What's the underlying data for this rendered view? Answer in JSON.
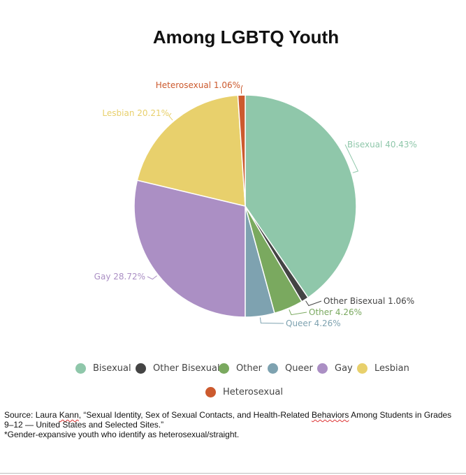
{
  "chart_data": {
    "type": "pie",
    "title": "Among LGBTQ Youth",
    "slices": [
      {
        "name": "Bisexual",
        "value": 40.43,
        "label": "Bisexual 40.43%",
        "color": "#8fc7aa"
      },
      {
        "name": "Other Bisexual",
        "value": 1.06,
        "label": "Other Bisexual 1.06%",
        "color": "#444444"
      },
      {
        "name": "Other",
        "value": 4.26,
        "label": "Other 4.26%",
        "color": "#7aa95f"
      },
      {
        "name": "Queer",
        "value": 4.26,
        "label": "Queer 4.26%",
        "color": "#7ea2b0"
      },
      {
        "name": "Gay",
        "value": 28.72,
        "label": "Gay 28.72%",
        "color": "#ab8fc4"
      },
      {
        "name": "Lesbian",
        "value": 20.21,
        "label": "Lesbian 20.21%",
        "color": "#e8d06c"
      },
      {
        "name": "Heterosexual",
        "value": 1.06,
        "label": "Heterosexual 1.06%",
        "color": "#cc5a2e"
      }
    ],
    "legend": [
      "Bisexual",
      "Other Bisexual",
      "Other",
      "Queer",
      "Gay",
      "Lesbian",
      "Heterosexual"
    ],
    "legend_position": "bottom"
  },
  "source": {
    "prefix": "Source: Laura ",
    "author_surname": "Kann",
    "middle": ",  “Sexual Identity, Sex of Sexual Contacts, and Health-Related ",
    "behaviors_word": "Behaviors",
    "suffix": " Among Students in Grades 9–12 — United States and Selected Sites.”",
    "footnote": "*Gender-expansive youth who identify as heterosexual/straight."
  }
}
